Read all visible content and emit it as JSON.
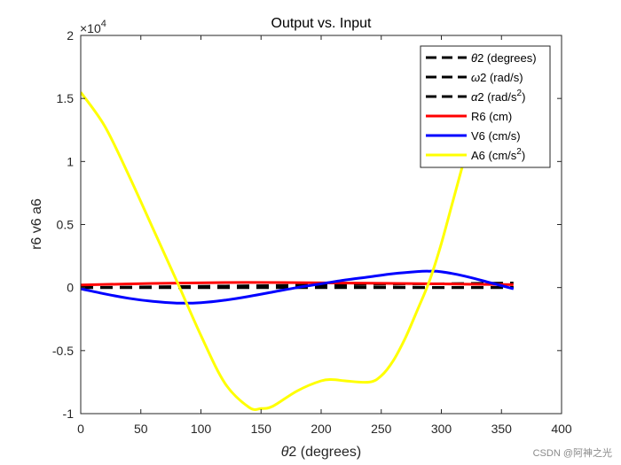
{
  "chart_data": {
    "type": "line",
    "title": "Output vs. Input",
    "xlabel_symbol": "θ",
    "xlabel_rest": "2 (degrees)",
    "ylabel": "r6 v6 a6",
    "xlim": [
      0,
      400
    ],
    "ylim": [
      -10000,
      20000
    ],
    "y_exponent_label": "×10",
    "y_exponent_power": "4",
    "x_ticks": [
      {
        "value": 0,
        "label": "0"
      },
      {
        "value": 50,
        "label": "50"
      },
      {
        "value": 100,
        "label": "100"
      },
      {
        "value": 150,
        "label": "150"
      },
      {
        "value": 200,
        "label": "200"
      },
      {
        "value": 250,
        "label": "250"
      },
      {
        "value": 300,
        "label": "300"
      },
      {
        "value": 350,
        "label": "350"
      },
      {
        "value": 400,
        "label": "400"
      }
    ],
    "y_ticks": [
      {
        "value": -10000,
        "label": "-1"
      },
      {
        "value": -5000,
        "label": "-0.5"
      },
      {
        "value": 0,
        "label": "0"
      },
      {
        "value": 5000,
        "label": "0.5"
      },
      {
        "value": 10000,
        "label": "1"
      },
      {
        "value": 15000,
        "label": "1.5"
      },
      {
        "value": 20000,
        "label": "2"
      }
    ],
    "legend_position": "top-right",
    "series": [
      {
        "name": "theta2",
        "sym": "θ",
        "label": "2 (degrees)",
        "sup": "",
        "close": "",
        "color": "#000000",
        "style": "dashed",
        "x": [
          0,
          360
        ],
        "y": [
          0,
          360
        ]
      },
      {
        "name": "omega2",
        "sym": "ω",
        "label": "2 (rad/s)",
        "sup": "",
        "close": "",
        "color": "#000000",
        "style": "dashed",
        "x": [
          0,
          360
        ],
        "y": [
          10,
          10
        ]
      },
      {
        "name": "alpha2",
        "sym": "α",
        "label": "2 (rad/s",
        "sup": "2",
        "close": ")",
        "color": "#000000",
        "style": "dashed",
        "x": [
          0,
          360
        ],
        "y": [
          0,
          0
        ]
      },
      {
        "name": "R6",
        "sym": "",
        "label": "R6 (cm)",
        "sup": "",
        "close": "",
        "color": "#ff0000",
        "style": "solid",
        "x": [
          0,
          60,
          120,
          180,
          240,
          300,
          360
        ],
        "y": [
          200,
          330,
          400,
          390,
          350,
          290,
          230
        ]
      },
      {
        "name": "V6",
        "sym": "",
        "label": "V6 (cm/s)",
        "sup": "",
        "close": "",
        "color": "#0000ff",
        "style": "solid",
        "x": [
          0,
          20,
          40,
          60,
          80,
          100,
          120,
          140,
          160,
          180,
          200,
          220,
          240,
          260,
          280,
          290,
          300,
          320,
          340,
          360
        ],
        "y": [
          -100,
          -500,
          -850,
          -1100,
          -1230,
          -1200,
          -1000,
          -700,
          -350,
          0,
          300,
          600,
          850,
          1100,
          1270,
          1300,
          1250,
          900,
          400,
          -100
        ]
      },
      {
        "name": "A6",
        "sym": "",
        "label": "A6 (cm/s",
        "sup": "2",
        "close": ")",
        "color": "#ffff00",
        "style": "solid",
        "x": [
          0,
          20,
          40,
          60,
          80,
          100,
          120,
          140,
          150,
          160,
          180,
          200,
          210,
          220,
          240,
          250,
          260,
          270,
          280,
          290,
          300,
          310,
          320
        ],
        "y": [
          15500,
          12800,
          8900,
          4700,
          500,
          -3800,
          -7600,
          -9500,
          -9600,
          -9400,
          -8200,
          -7400,
          -7300,
          -7400,
          -7500,
          -7000,
          -5800,
          -4000,
          -1800,
          500,
          3500,
          7000,
          10500
        ]
      }
    ]
  },
  "watermark": "CSDN @阿神之光"
}
